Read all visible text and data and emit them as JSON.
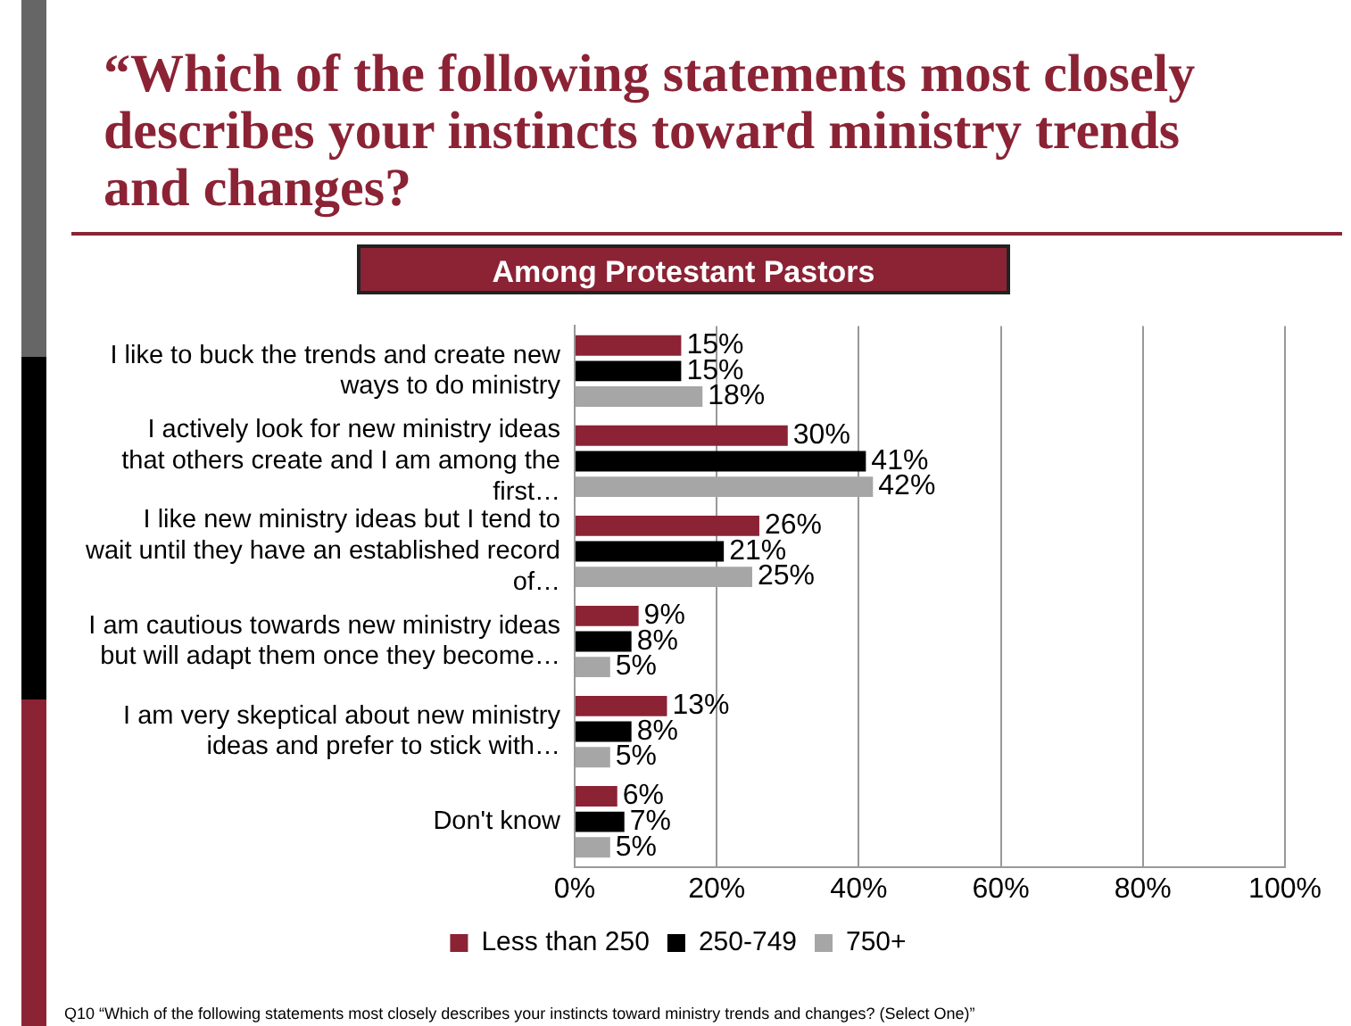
{
  "chart_data": {
    "type": "bar",
    "orientation": "horizontal",
    "title": "“Which of the following statements most closely describes your instincts toward ministry trends and changes?",
    "subtitle": "Among Protestant Pastors",
    "categories": [
      "I like to buck the trends and create new ways to do ministry",
      "I actively look for new ministry ideas that others create and I am among the first…",
      "I like new ministry ideas but I tend to wait until they have an established record of…",
      "I am cautious towards new ministry ideas but will adapt them once they become…",
      "I am very skeptical about new ministry ideas and prefer to stick with…",
      "Don't know"
    ],
    "series": [
      {
        "name": "Less than 250",
        "color": "#8b2335",
        "values": [
          15,
          30,
          26,
          9,
          13,
          6
        ],
        "value_labels": [
          "15%",
          "30%",
          "26%",
          "9%",
          "13%",
          "6%"
        ]
      },
      {
        "name": "250-749",
        "color": "#000000",
        "values": [
          15,
          41,
          21,
          8,
          8,
          7
        ],
        "value_labels": [
          "15%",
          "41%",
          "21%",
          "8%",
          "8%",
          "7%"
        ]
      },
      {
        "name": "750+",
        "color": "#a6a6a6",
        "values": [
          18,
          42,
          25,
          5,
          5,
          5
        ],
        "value_labels": [
          "18%",
          "42%",
          "25%",
          "5%",
          "5%",
          "5%"
        ]
      }
    ],
    "xlim": [
      0,
      100
    ],
    "xticks": [
      {
        "value": 0,
        "label": "0%"
      },
      {
        "value": 20,
        "label": "20%"
      },
      {
        "value": 40,
        "label": "40%"
      },
      {
        "value": 60,
        "label": "60%"
      },
      {
        "value": 80,
        "label": "80%"
      },
      {
        "value": 100,
        "label": "100%"
      }
    ],
    "grid": "x",
    "legend": "bottom",
    "annotations": [
      "Q10 “Which of the following statements most closely describes your instincts toward ministry trends and changes? (Select One)”"
    ]
  }
}
